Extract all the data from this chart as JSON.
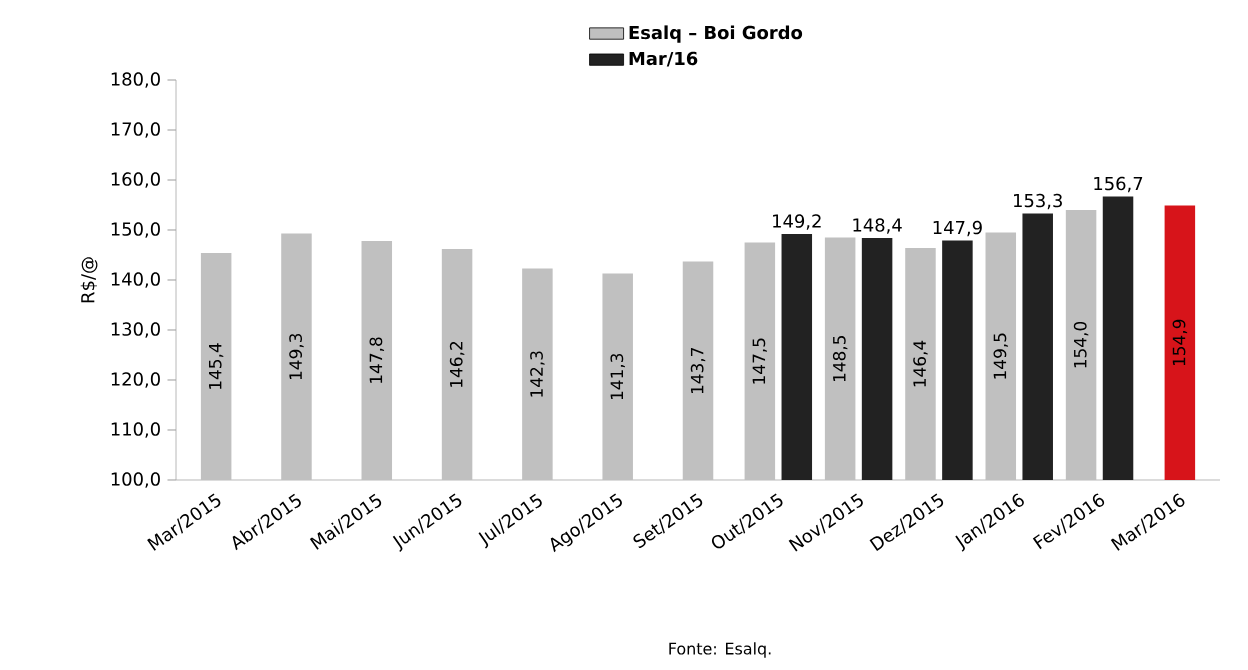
{
  "chart_data": {
    "type": "bar",
    "ylabel": "R$/@",
    "categories": [
      "Mar/2015",
      "Abr/2015",
      "Mai/2015",
      "Jun/2015",
      "Jul/2015",
      "Ago/2015",
      "Set/2015",
      "Out/2015",
      "Nov/2015",
      "Dez/2015",
      "Jan/2016",
      "Fev/2016",
      "Mar/2016"
    ],
    "series": [
      {
        "name": "Esalq – Boi Gordo",
        "color": "#c0c0c0",
        "colors": [
          "#c0c0c0",
          "#c0c0c0",
          "#c0c0c0",
          "#c0c0c0",
          "#c0c0c0",
          "#c0c0c0",
          "#c0c0c0",
          "#c0c0c0",
          "#c0c0c0",
          "#c0c0c0",
          "#c0c0c0",
          "#c0c0c0",
          "#d7141a"
        ],
        "values": [
          145.4,
          149.3,
          147.8,
          146.2,
          142.3,
          141.3,
          143.7,
          147.5,
          148.5,
          146.4,
          149.5,
          154.0,
          154.9
        ],
        "value_labels": [
          "145,4",
          "149,3",
          "147,8",
          "146,2",
          "142,3",
          "141,3",
          "143,7",
          "147,5",
          "148,5",
          "146,4",
          "149,5",
          "154,0",
          "154,9"
        ]
      },
      {
        "name": "Mar/16",
        "color": "#222222",
        "values": [
          null,
          null,
          null,
          null,
          null,
          null,
          null,
          149.2,
          148.4,
          147.9,
          153.3,
          156.7,
          null
        ],
        "value_labels": [
          null,
          null,
          null,
          null,
          null,
          null,
          null,
          "149,2",
          "148,4",
          "147,9",
          "153,3",
          "156,7",
          null
        ]
      }
    ],
    "ylim": [
      100,
      180
    ],
    "yticks": [
      {
        "value": 100,
        "label": "100,0"
      },
      {
        "value": 110,
        "label": "110,0"
      },
      {
        "value": 120,
        "label": "120,0"
      },
      {
        "value": 130,
        "label": "130,0"
      },
      {
        "value": 140,
        "label": "140,0"
      },
      {
        "value": 150,
        "label": "150,0"
      },
      {
        "value": 160,
        "label": "160,0"
      },
      {
        "value": 170,
        "label": "170,0"
      },
      {
        "value": 180,
        "label": "180,0"
      }
    ],
    "grid": false,
    "legend": "top",
    "annotations": [
      "Fonte: Esalq."
    ]
  }
}
